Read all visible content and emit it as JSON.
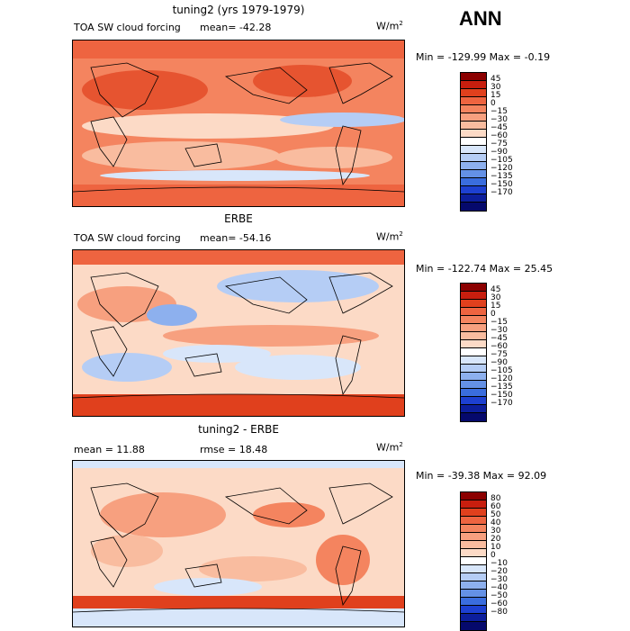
{
  "season": "ANN",
  "panels": [
    {
      "title": "tuning2 (yrs 1979-1979)",
      "field": "TOA SW cloud forcing",
      "stats_left": "",
      "mean": "mean= -42.28",
      "units": "W/m",
      "minmax": "Min = -129.99 Max = -0.19",
      "levels": [
        "45",
        "30",
        "15",
        "0",
        "−15",
        "−30",
        "−45",
        "−60",
        "−75",
        "−90",
        "−105",
        "−120",
        "−135",
        "−150",
        "−170"
      ],
      "colors": [
        "#8b0000",
        "#c81e0e",
        "#e0401d",
        "#ee6440",
        "#f4845f",
        "#f7a07f",
        "#f9bc9f",
        "#fcdac6",
        "#ffffff",
        "#d8e6fa",
        "#b5cdf5",
        "#8db0ee",
        "#6491e6",
        "#3a6dde",
        "#1d40d1",
        "#0c1e9c",
        "#05096c"
      ]
    },
    {
      "title": "ERBE",
      "field": "TOA SW cloud forcing",
      "stats_left": "",
      "mean": "mean= -54.16",
      "units": "W/m",
      "minmax": "Min = -122.74 Max = 25.45",
      "levels": [
        "45",
        "30",
        "15",
        "0",
        "−15",
        "−30",
        "−45",
        "−60",
        "−75",
        "−90",
        "−105",
        "−120",
        "−135",
        "−150",
        "−170"
      ],
      "colors": [
        "#8b0000",
        "#c81e0e",
        "#e0401d",
        "#ee6440",
        "#f4845f",
        "#f7a07f",
        "#f9bc9f",
        "#fcdac6",
        "#ffffff",
        "#d8e6fa",
        "#b5cdf5",
        "#8db0ee",
        "#6491e6",
        "#3a6dde",
        "#1d40d1",
        "#0c1e9c",
        "#05096c"
      ]
    },
    {
      "title": "tuning2 - ERBE",
      "field": "",
      "stats_left": "mean = 11.88",
      "mean": "rmse = 18.48",
      "units": "W/m",
      "minmax": "Min = -39.38 Max = 92.09",
      "levels": [
        "80",
        "60",
        "50",
        "40",
        "30",
        "20",
        "10",
        "0",
        "−10",
        "−20",
        "−30",
        "−40",
        "−50",
        "−60",
        "−80"
      ],
      "colors": [
        "#8b0000",
        "#c81e0e",
        "#e0401d",
        "#ee6440",
        "#f4845f",
        "#f7a07f",
        "#f9bc9f",
        "#fcdac6",
        "#ffffff",
        "#d8e6fa",
        "#b5cdf5",
        "#8db0ee",
        "#6491e6",
        "#3a6dde",
        "#1d40d1",
        "#0c1e9c",
        "#05096c"
      ]
    }
  ],
  "chart_data": [
    {
      "type": "heatmap",
      "title": "tuning2 (yrs 1979-1979)",
      "subtitle": "TOA SW cloud forcing",
      "mean": -42.28,
      "min": -129.99,
      "max": -0.19,
      "units": "W/m2"
    },
    {
      "type": "heatmap",
      "title": "ERBE",
      "subtitle": "TOA SW cloud forcing",
      "mean": -54.16,
      "min": -122.74,
      "max": 25.45,
      "units": "W/m2"
    },
    {
      "type": "heatmap",
      "title": "tuning2 - ERBE",
      "mean": 11.88,
      "rmse": 18.48,
      "min": -39.38,
      "max": 92.09,
      "units": "W/m2"
    }
  ]
}
